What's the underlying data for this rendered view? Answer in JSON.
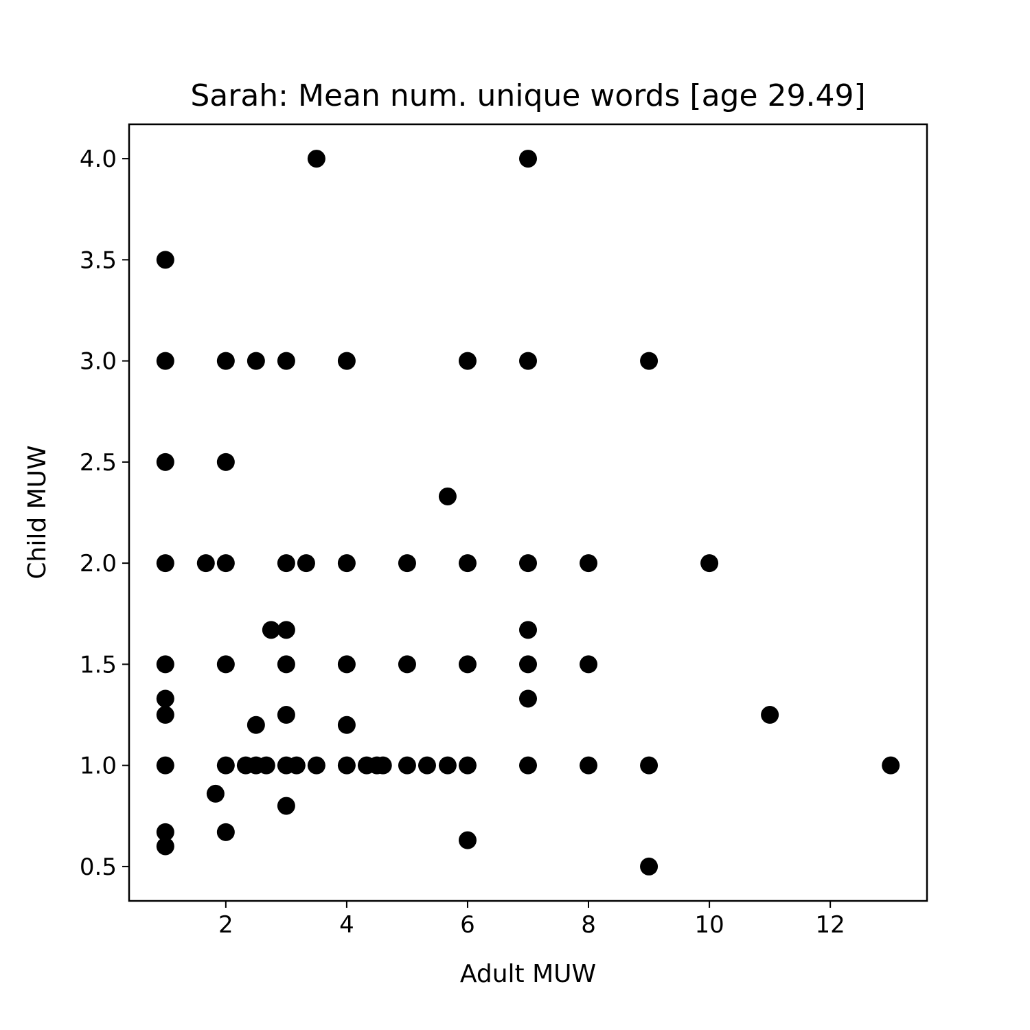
{
  "chart_data": {
    "type": "scatter",
    "title": "Sarah: Mean num. unique words [age 29.49]",
    "xlabel": "Adult MUW",
    "ylabel": "Child MUW",
    "xlim": [
      0.4,
      13.6
    ],
    "ylim": [
      0.33,
      4.17
    ],
    "xticks": [
      2,
      4,
      6,
      8,
      10,
      12
    ],
    "xtick_labels": [
      "2",
      "4",
      "6",
      "8",
      "10",
      "12"
    ],
    "yticks": [
      0.5,
      1.0,
      1.5,
      2.0,
      2.5,
      3.0,
      3.5,
      4.0
    ],
    "ytick_labels": [
      "0.5",
      "1.0",
      "1.5",
      "2.0",
      "2.5",
      "3.0",
      "3.5",
      "4.0"
    ],
    "grid": false,
    "marker_color": "#000000",
    "points": [
      [
        3.5,
        4.0
      ],
      [
        7,
        4.0
      ],
      [
        1,
        3.5
      ],
      [
        1,
        3.0
      ],
      [
        2,
        3.0
      ],
      [
        2.5,
        3.0
      ],
      [
        3,
        3.0
      ],
      [
        4,
        3.0
      ],
      [
        6,
        3.0
      ],
      [
        7,
        3.0
      ],
      [
        9,
        3.0
      ],
      [
        1,
        2.5
      ],
      [
        2,
        2.5
      ],
      [
        5.67,
        2.33
      ],
      [
        1,
        2.0
      ],
      [
        1.67,
        2.0
      ],
      [
        2,
        2.0
      ],
      [
        3,
        2.0
      ],
      [
        3.33,
        2.0
      ],
      [
        4,
        2.0
      ],
      [
        5,
        2.0
      ],
      [
        6,
        2.0
      ],
      [
        7,
        2.0
      ],
      [
        8,
        2.0
      ],
      [
        10,
        2.0
      ],
      [
        2.75,
        1.67
      ],
      [
        3,
        1.67
      ],
      [
        7,
        1.67
      ],
      [
        1,
        1.5
      ],
      [
        2,
        1.5
      ],
      [
        3,
        1.5
      ],
      [
        4,
        1.5
      ],
      [
        5,
        1.5
      ],
      [
        6,
        1.5
      ],
      [
        7,
        1.5
      ],
      [
        8,
        1.5
      ],
      [
        1,
        1.33
      ],
      [
        7,
        1.33
      ],
      [
        1,
        1.25
      ],
      [
        3,
        1.25
      ],
      [
        11,
        1.25
      ],
      [
        2.5,
        1.2
      ],
      [
        4,
        1.2
      ],
      [
        1,
        1.0
      ],
      [
        2,
        1.0
      ],
      [
        2.33,
        1.0
      ],
      [
        2.5,
        1.0
      ],
      [
        2.67,
        1.0
      ],
      [
        3,
        1.0
      ],
      [
        3.17,
        1.0
      ],
      [
        3.5,
        1.0
      ],
      [
        4,
        1.0
      ],
      [
        4.33,
        1.0
      ],
      [
        4.5,
        1.0
      ],
      [
        4.6,
        1.0
      ],
      [
        5,
        1.0
      ],
      [
        5.33,
        1.0
      ],
      [
        5.67,
        1.0
      ],
      [
        6,
        1.0
      ],
      [
        7,
        1.0
      ],
      [
        8,
        1.0
      ],
      [
        9,
        1.0
      ],
      [
        13,
        1.0
      ],
      [
        1.83,
        0.86
      ],
      [
        3,
        0.8
      ],
      [
        1,
        0.67
      ],
      [
        2,
        0.67
      ],
      [
        6,
        0.63
      ],
      [
        1,
        0.6
      ],
      [
        9,
        0.5
      ]
    ]
  }
}
